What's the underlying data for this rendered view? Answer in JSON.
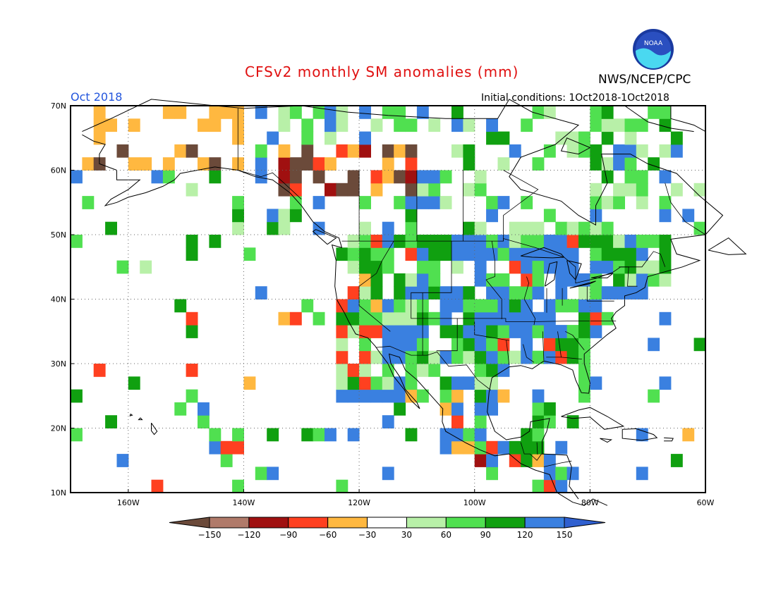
{
  "header": {
    "title": "CFSv2 monthly SM anomalies (mm)",
    "month": "Oct 2018",
    "agency": "NWS/NCEP/CPC",
    "logo_text": "NOAA",
    "initial_conditions": "Initial conditions: 1Oct2018-1Oct2018"
  },
  "map": {
    "lat_labels": [
      "70N",
      "60N",
      "50N",
      "40N",
      "30N",
      "20N",
      "10N"
    ],
    "lon_labels": [
      "160W",
      "140W",
      "120W",
      "100W",
      "80W",
      "60W"
    ],
    "lat_range": [
      10,
      70
    ],
    "lon_range": [
      -170,
      -60
    ]
  },
  "legend": {
    "labels": [
      "-150",
      "-120",
      "-90",
      "-60",
      "-30",
      "30",
      "60",
      "90",
      "120",
      "150"
    ],
    "colors": [
      "#6b4a3a",
      "#b07a6a",
      "#a01010",
      "#ff4020",
      "#ffb840",
      "#ffffff",
      "#b8f0a8",
      "#50e050",
      "#10a010",
      "#3a80e0",
      "#3060d0"
    ]
  },
  "colors": {
    "title": "#e01010",
    "month": "#2255dd"
  }
}
